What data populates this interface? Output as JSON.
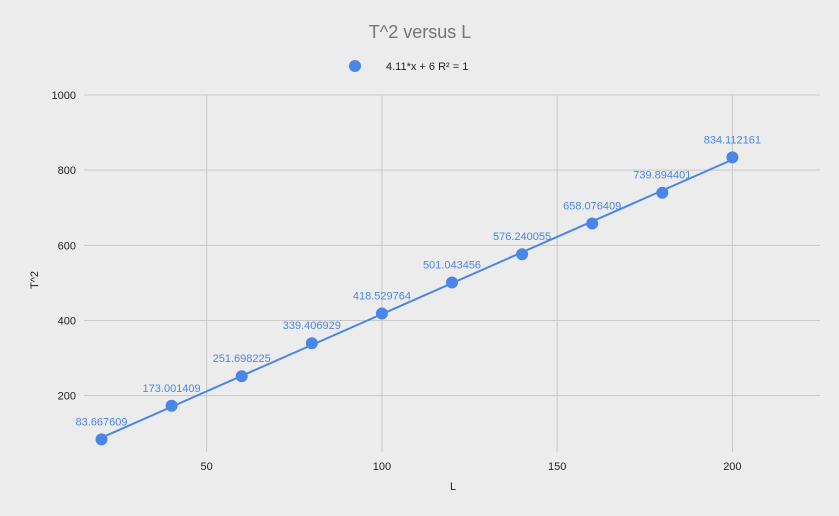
{
  "chart_data": {
    "type": "scatter",
    "title": "T^2 versus L",
    "xlabel": "L",
    "ylabel": "T^2",
    "xlim": [
      15,
      225
    ],
    "ylim": [
      50,
      1000
    ],
    "xticks": [
      50,
      100,
      150,
      200
    ],
    "yticks": [
      200,
      400,
      600,
      800,
      1000
    ],
    "grid": true,
    "legend_position": "top",
    "series": [
      {
        "name": "4.11*x + 6 R² = 1",
        "color": "#4a86e8",
        "x": [
          20,
          40,
          60,
          80,
          100,
          120,
          140,
          160,
          180,
          200
        ],
        "y": [
          83.667609,
          173.001409,
          251.698225,
          339.406929,
          418.529764,
          501.043456,
          576.240055,
          658.076409,
          739.894401,
          834.112161
        ],
        "labels": [
          "83.667609",
          "173.001409",
          "251.698225",
          "339.406929",
          "418.529764",
          "501.043456",
          "576.240055",
          "658.076409",
          "739.894401",
          "834.112161"
        ]
      }
    ],
    "trendline": {
      "slope": 4.11,
      "intercept": 6,
      "color": "#4a86e8"
    }
  }
}
